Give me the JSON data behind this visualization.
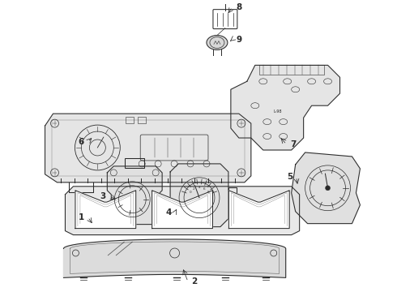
{
  "bg_color": "#ffffff",
  "line_color": "#2a2a2a",
  "figsize": [
    4.9,
    3.6
  ],
  "dpi": 100,
  "lw": 0.75,
  "callout_fs": 7.5
}
